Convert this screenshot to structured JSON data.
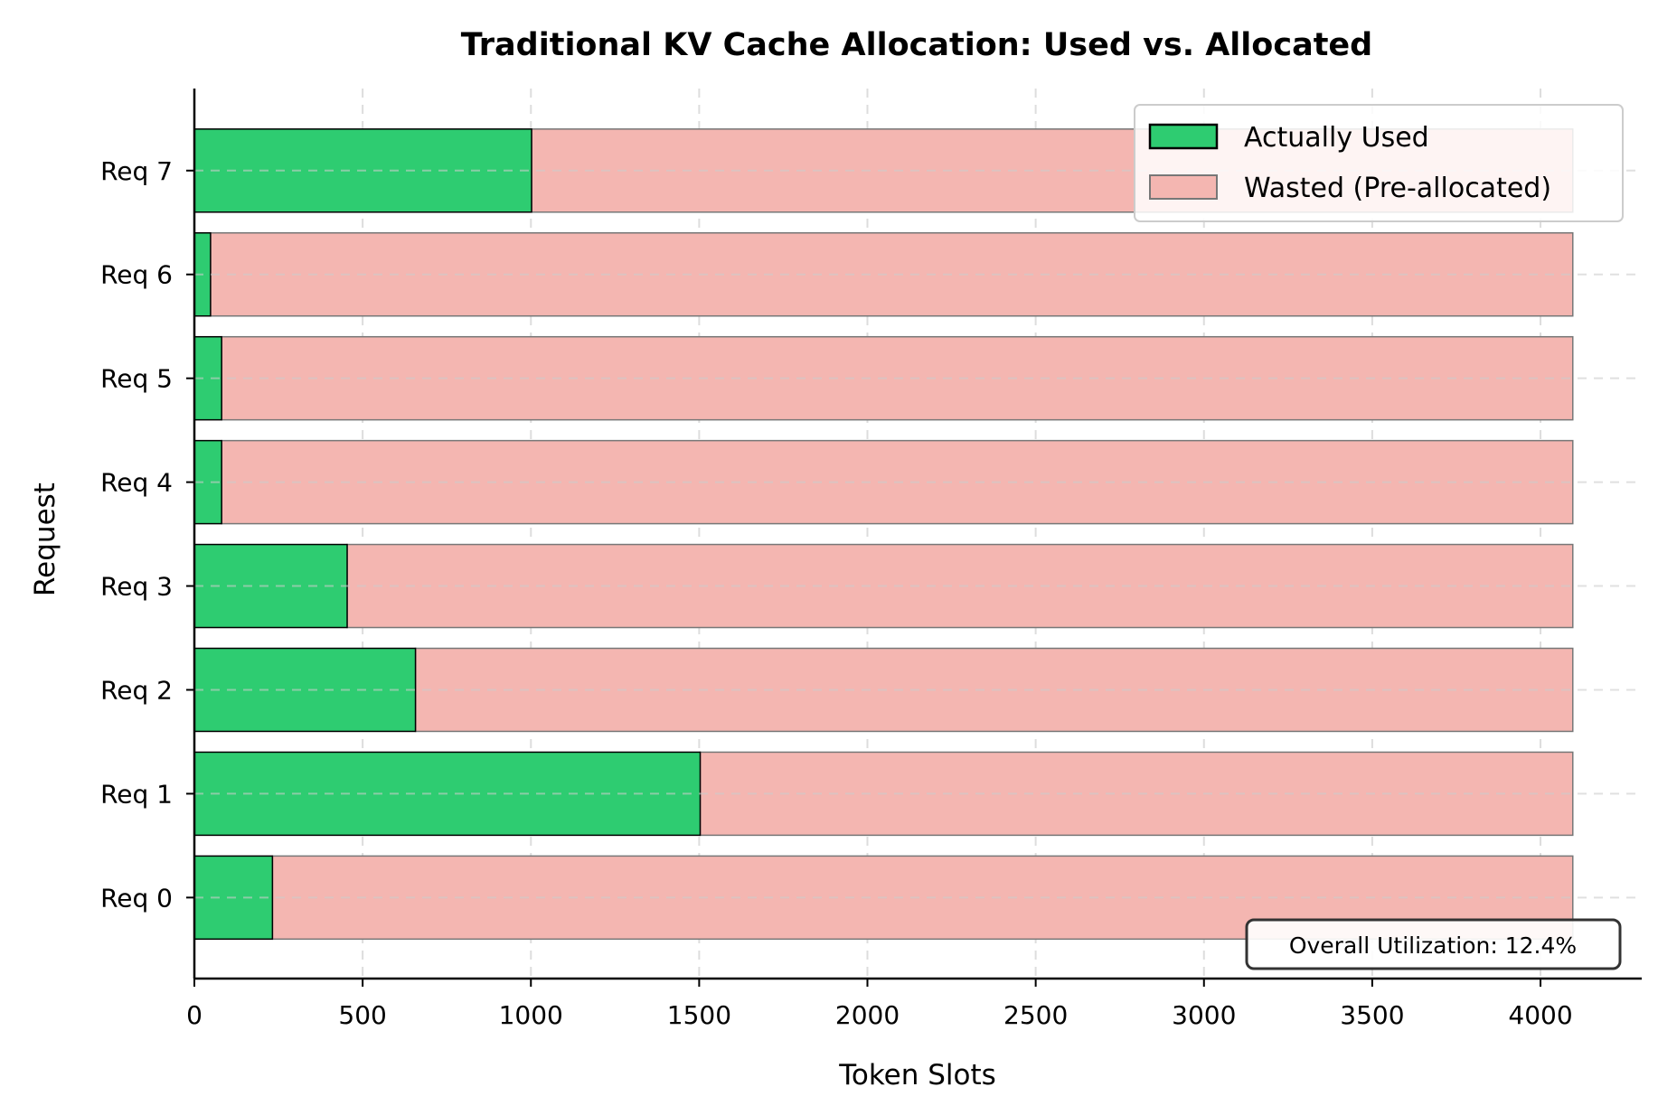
{
  "chart_data": {
    "type": "bar",
    "orientation": "horizontal",
    "stacked": true,
    "title": "Traditional KV Cache Allocation: Used vs. Allocated",
    "xlabel": "Token Slots",
    "ylabel": "Request",
    "categories": [
      "Req 0",
      "Req 1",
      "Req 2",
      "Req 3",
      "Req 4",
      "Req 5",
      "Req 6",
      "Req 7"
    ],
    "allocated": 4096,
    "series": [
      {
        "name": "Actually Used",
        "color": "#2ecc71",
        "values": [
          232,
          1503,
          657,
          454,
          81,
          81,
          48,
          1002
        ]
      },
      {
        "name": "Wasted (Pre-allocated)",
        "color": "#f4b6b1",
        "values": [
          3864,
          2593,
          3439,
          3642,
          4015,
          4015,
          4048,
          3094
        ]
      }
    ],
    "xlim": [
      0,
      4300.8
    ],
    "xticks": [
      "0",
      "500",
      "1000",
      "1500",
      "2000",
      "2500",
      "3000",
      "3500",
      "4000"
    ],
    "xtick_values": [
      0,
      500,
      1000,
      1500,
      2000,
      2500,
      3000,
      3500,
      4000
    ],
    "grid": true,
    "legend": "top-right",
    "annotation": "Overall Utilization: 12.4%"
  }
}
